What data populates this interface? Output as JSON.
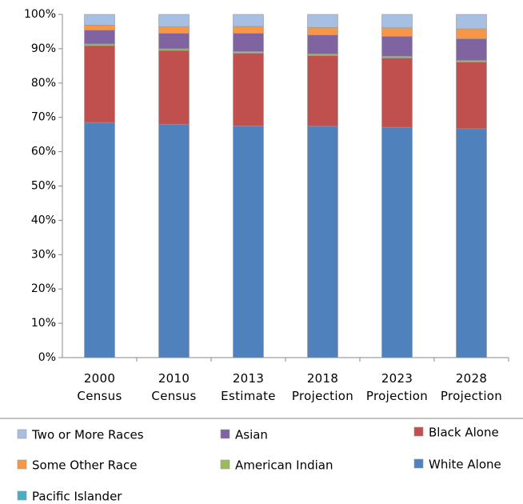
{
  "chart_data": {
    "type": "stacked_bar",
    "categories": [
      "2000 Census",
      "2010 Census",
      "2013 Estimate",
      "2018 Projection",
      "2023 Projection",
      "2028 Projection"
    ],
    "series": [
      {
        "name": "White Alone",
        "color": "#4f81bd",
        "values": [
          68.5,
          68.0,
          67.5,
          67.4,
          67.1,
          66.7
        ]
      },
      {
        "name": "Black Alone",
        "color": "#c0504d",
        "values": [
          22.4,
          21.5,
          21.2,
          20.6,
          20.2,
          19.4
        ]
      },
      {
        "name": "American Indian",
        "color": "#9bbb59",
        "values": [
          0.4,
          0.4,
          0.4,
          0.4,
          0.4,
          0.4
        ]
      },
      {
        "name": "Pacific Islander",
        "color": "#4bacc6",
        "values": [
          0.1,
          0.1,
          0.1,
          0.1,
          0.1,
          0.1
        ]
      },
      {
        "name": "Asian",
        "color": "#8064a2",
        "values": [
          4.0,
          4.5,
          5.3,
          5.5,
          5.8,
          6.3
        ]
      },
      {
        "name": "Some Other Race",
        "color": "#f79646",
        "values": [
          1.5,
          1.9,
          2.0,
          2.2,
          2.5,
          2.9
        ]
      },
      {
        "name": "Two or More Races",
        "color": "#a7bfe0",
        "values": [
          3.1,
          3.6,
          3.5,
          3.8,
          3.9,
          4.2
        ]
      }
    ],
    "ylim": [
      0,
      100
    ],
    "yticks": [
      {
        "value": 0,
        "label": "0%"
      },
      {
        "value": 10,
        "label": "10%"
      },
      {
        "value": 20,
        "label": "20%"
      },
      {
        "value": 30,
        "label": "30%"
      },
      {
        "value": 40,
        "label": "40%"
      },
      {
        "value": 50,
        "label": "50%"
      },
      {
        "value": 60,
        "label": "60%"
      },
      {
        "value": 70,
        "label": "70%"
      },
      {
        "value": 80,
        "label": "80%"
      },
      {
        "value": 90,
        "label": "90%"
      },
      {
        "value": 100,
        "label": "100%"
      }
    ],
    "grid": false
  }
}
